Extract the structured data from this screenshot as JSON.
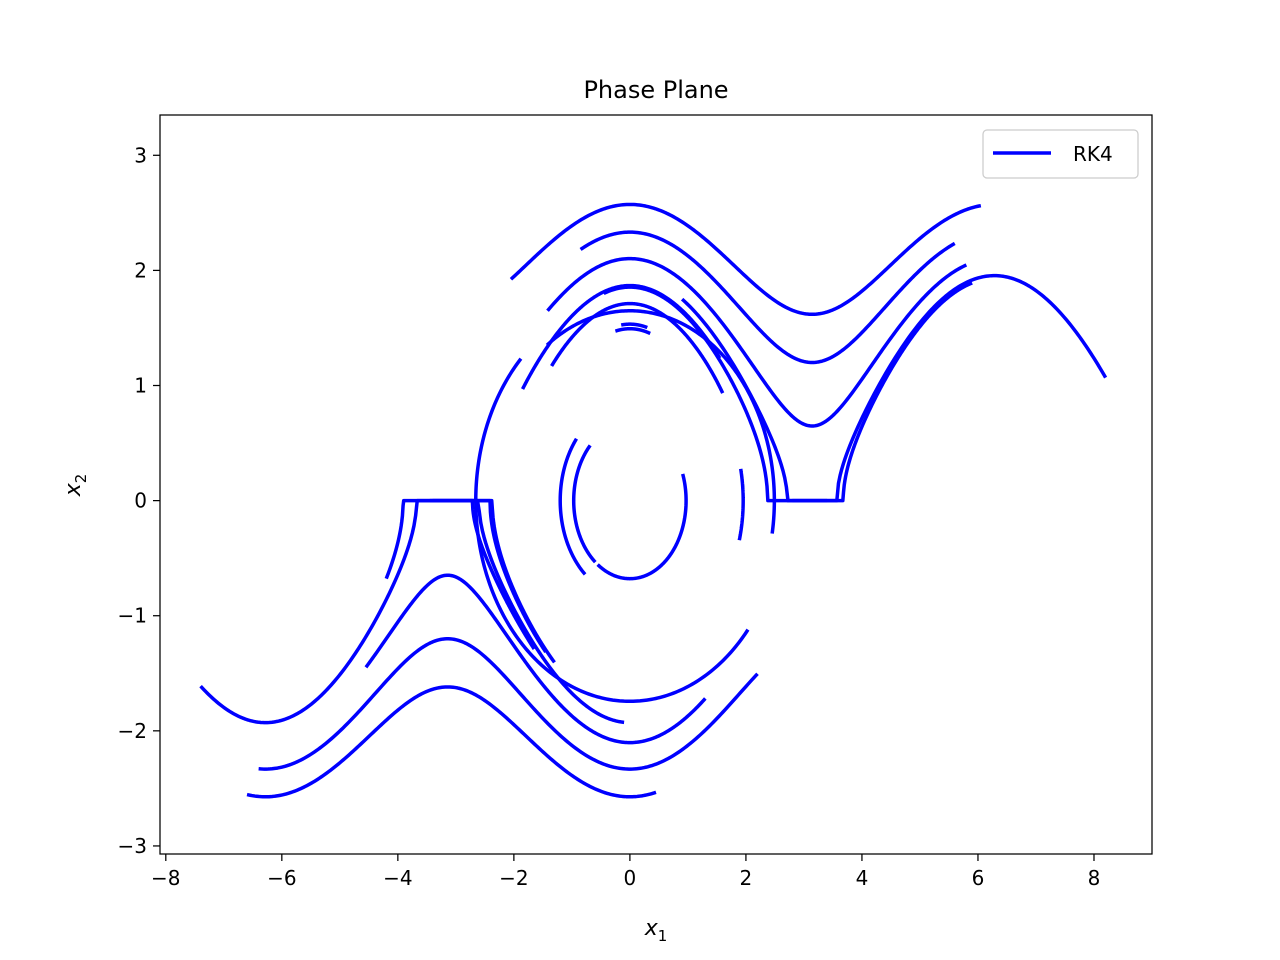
{
  "colors": {
    "series": "#0000ff",
    "frame": "#000000",
    "legend_border": "#cccccc",
    "background": "#ffffff"
  },
  "chart_data": {
    "type": "line",
    "title": "Phase Plane",
    "xlabel_main": "x",
    "xlabel_sub": "1",
    "ylabel_main": "x",
    "ylabel_sub": "2",
    "xlim": [
      -8.1,
      9.0
    ],
    "ylim": [
      -3.07,
      3.35
    ],
    "xticks": [
      -8,
      -6,
      -4,
      -2,
      0,
      2,
      4,
      6,
      8
    ],
    "yticks": [
      -3,
      -2,
      -1,
      0,
      1,
      2,
      3
    ],
    "grid": false,
    "legend_position": "top-right",
    "series": [
      {
        "name": "RK4",
        "type": "phase",
        "C": 4.62,
        "sign": 1,
        "x_range": [
          -2.05,
          6.05
        ]
      },
      {
        "type": "phase",
        "C": 3.44,
        "sign": 1,
        "x_range": [
          -0.85,
          5.6
        ]
      },
      {
        "type": "phase",
        "C": 2.42,
        "sign": 1,
        "x_range": [
          -1.42,
          5.8
        ]
      },
      {
        "type": "phase",
        "C": 1.82,
        "sign": 1,
        "x_range": [
          0.9,
          8.2
        ]
      },
      {
        "type": "phase",
        "C": 1.72,
        "sign": 1,
        "x_range": [
          2.8,
          5.9
        ]
      },
      {
        "type": "phase",
        "C": 1.44,
        "sign": 1,
        "x_range": [
          -0.45,
          3.4
        ]
      },
      {
        "type": "phase",
        "C": 1.49,
        "sign": 1,
        "x_range": [
          -1.85,
          1.55
        ]
      },
      {
        "type": "phase",
        "C": 0.93,
        "sign": 1,
        "x_range": [
          -1.35,
          1.6
        ]
      },
      {
        "type": "phase",
        "C": 0.35,
        "sign": 1,
        "x_range": [
          -0.15,
          0.3
        ]
      },
      {
        "type": "phase",
        "C": 0.23,
        "sign": 1,
        "x_range": [
          -0.25,
          0.35
        ]
      },
      {
        "type": "closed_arc",
        "C": 1.36,
        "arc_deg": [
          350,
          125
        ]
      },
      {
        "type": "closed_arc",
        "C": 1.52,
        "arc_deg": [
          135,
          320
        ]
      },
      {
        "type": "closed_arc",
        "C": 0.23,
        "arc_deg": [
          235,
          20
        ]
      },
      {
        "type": "closed_arc",
        "C": 0.35,
        "arc_deg": [
          140,
          230
        ]
      },
      {
        "type": "closed_arc",
        "C": 0.23,
        "arc_deg": [
          135,
          232
        ]
      },
      {
        "type": "closed_arc",
        "C": 0.88,
        "arc_deg": [
          345,
          12
        ]
      },
      {
        "type": "phase",
        "C": 4.62,
        "sign": -1,
        "x_range": [
          -6.6,
          0.45
        ]
      },
      {
        "type": "phase",
        "C": 3.44,
        "sign": -1,
        "x_range": [
          -6.4,
          2.2
        ]
      },
      {
        "type": "phase",
        "C": 2.42,
        "sign": -1,
        "x_range": [
          -4.55,
          1.3
        ]
      },
      {
        "type": "phase",
        "C": 1.82,
        "sign": -1,
        "x_range": [
          -3.4,
          -1.65
        ]
      },
      {
        "type": "phase",
        "C": 1.72,
        "sign": -1,
        "x_range": [
          -7.4,
          -0.1
        ]
      },
      {
        "type": "phase",
        "C": 1.44,
        "sign": -1,
        "x_range": [
          -4.2,
          -1.3
        ]
      },
      {
        "type": "phase",
        "C": 1.49,
        "sign": -1,
        "x_range": [
          -3.45,
          -1.45
        ]
      }
    ]
  }
}
